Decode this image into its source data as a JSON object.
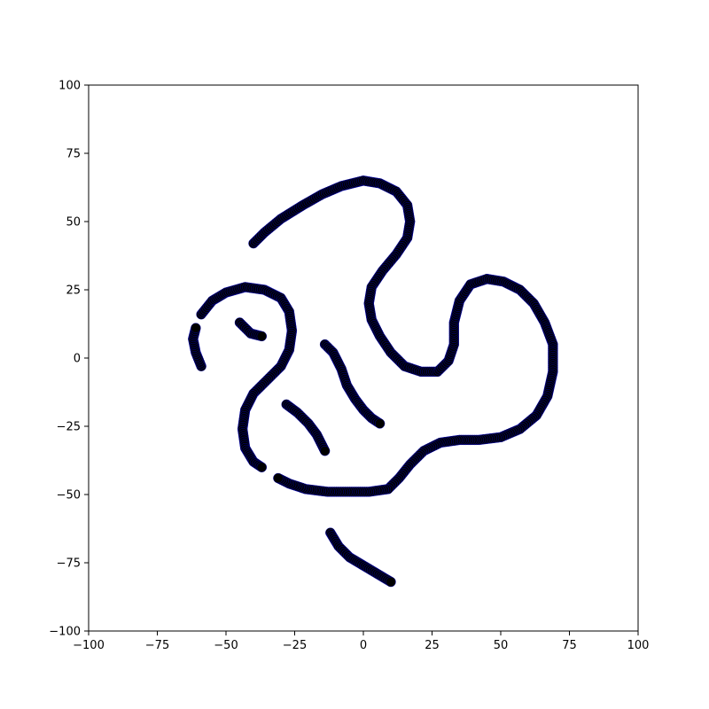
{
  "chart_data": {
    "type": "scatter",
    "title": "",
    "xlabel": "",
    "ylabel": "",
    "xlim": [
      -100,
      100
    ],
    "ylim": [
      -100,
      100
    ],
    "x_ticks": [
      -100,
      -75,
      -50,
      -25,
      0,
      25,
      50,
      75,
      100
    ],
    "y_ticks": [
      -100,
      -75,
      -50,
      -25,
      0,
      25,
      50,
      75,
      100
    ],
    "x_tick_labels": [
      "−100",
      "−75",
      "−50",
      "−25",
      "0",
      "25",
      "50",
      "75",
      "100"
    ],
    "y_tick_labels": [
      "−100",
      "−75",
      "−50",
      "−25",
      "0",
      "25",
      "50",
      "75",
      "100"
    ],
    "grid": false,
    "series": [
      {
        "marker": "circle",
        "color": "#000000",
        "edge_color": "#0000cc",
        "curves": [
          [
            [
              -40,
              42
            ],
            [
              -36,
              46
            ],
            [
              -30,
              51
            ],
            [
              -22,
              56
            ],
            [
              -15,
              60
            ],
            [
              -8,
              63
            ],
            [
              0,
              65
            ],
            [
              6,
              64
            ],
            [
              12,
              61
            ],
            [
              16,
              56
            ],
            [
              17,
              50
            ],
            [
              16,
              44
            ],
            [
              12,
              38
            ],
            [
              7,
              32
            ],
            [
              3,
              26
            ],
            [
              2,
              20
            ],
            [
              3,
              14
            ],
            [
              6,
              8
            ],
            [
              10,
              2
            ],
            [
              15,
              -3
            ],
            [
              21,
              -5
            ],
            [
              27,
              -5
            ],
            [
              31,
              -1
            ],
            [
              33,
              5
            ],
            [
              33,
              13
            ],
            [
              35,
              21
            ],
            [
              39,
              27
            ],
            [
              45,
              29
            ],
            [
              51,
              28
            ],
            [
              57,
              25
            ],
            [
              62,
              20
            ],
            [
              66,
              13
            ],
            [
              69,
              5
            ],
            [
              69,
              -5
            ],
            [
              67,
              -14
            ],
            [
              63,
              -21
            ],
            [
              57,
              -26
            ],
            [
              50,
              -29
            ],
            [
              42,
              -30
            ],
            [
              35,
              -30
            ],
            [
              28,
              -31
            ],
            [
              22,
              -34
            ],
            [
              17,
              -39
            ],
            [
              13,
              -44
            ],
            [
              9,
              -48
            ],
            [
              2,
              -49
            ],
            [
              -5,
              -49
            ],
            [
              -13,
              -49
            ],
            [
              -21,
              -48
            ],
            [
              -27,
              -46
            ],
            [
              -31,
              -44
            ]
          ],
          [
            [
              -59,
              -3
            ],
            [
              -61,
              2
            ],
            [
              -62,
              7
            ],
            [
              -61,
              11
            ]
          ],
          [
            [
              -59,
              16
            ],
            [
              -55,
              21
            ],
            [
              -50,
              24
            ],
            [
              -43,
              26
            ],
            [
              -36,
              25
            ],
            [
              -30,
              22
            ],
            [
              -27,
              17
            ],
            [
              -26,
              10
            ],
            [
              -27,
              3
            ],
            [
              -30,
              -3
            ],
            [
              -35,
              -8
            ],
            [
              -40,
              -13
            ],
            [
              -43,
              -19
            ],
            [
              -44,
              -26
            ],
            [
              -43,
              -33
            ],
            [
              -40,
              -38
            ],
            [
              -37,
              -40
            ]
          ],
          [
            [
              -45,
              13
            ],
            [
              -41,
              9
            ],
            [
              -37,
              8
            ]
          ],
          [
            [
              -14,
              5
            ],
            [
              -11,
              2
            ],
            [
              -8,
              -4
            ],
            [
              -6,
              -10
            ],
            [
              -3,
              -15
            ],
            [
              0,
              -19
            ],
            [
              3,
              -22
            ],
            [
              6,
              -24
            ]
          ],
          [
            [
              -28,
              -17
            ],
            [
              -24,
              -20
            ],
            [
              -20,
              -24
            ],
            [
              -17,
              -28
            ],
            [
              -15,
              -32
            ],
            [
              -14,
              -34
            ]
          ],
          [
            [
              -12,
              -64
            ],
            [
              -9,
              -69
            ],
            [
              -5,
              -73
            ],
            [
              0,
              -76
            ],
            [
              5,
              -79
            ],
            [
              10,
              -82
            ]
          ]
        ]
      }
    ]
  }
}
